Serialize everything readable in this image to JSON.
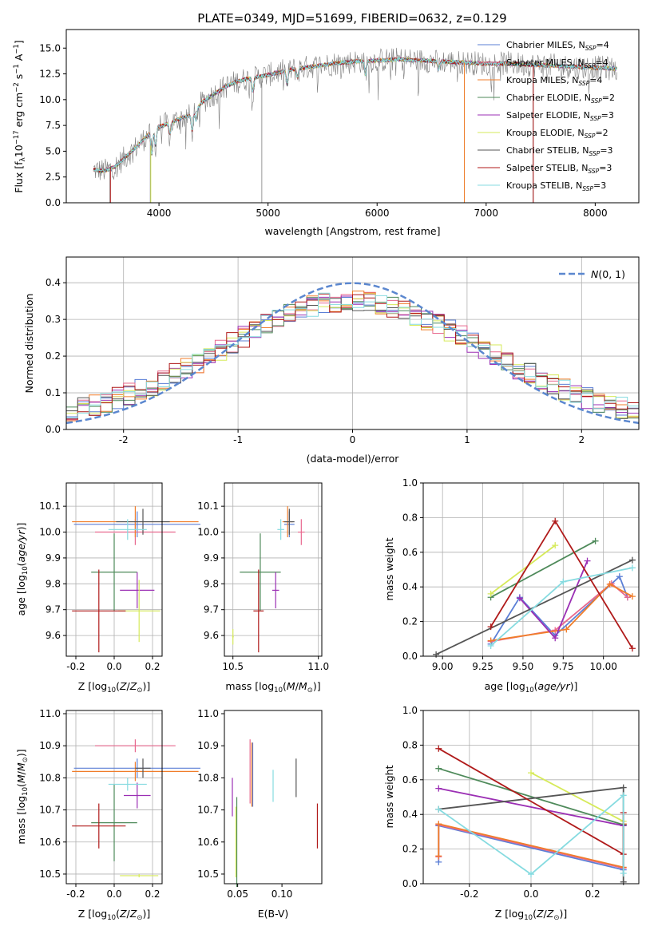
{
  "figure": {
    "title": "PLATE=0349, MJD=51699, FIBERID=0632, z=0.129"
  },
  "colors": {
    "chabrier_miles": "#5b7fd6",
    "salpeter_miles": "#e8688e",
    "kroupa_miles": "#f07d2a",
    "chabrier_elodie": "#4e8a5a",
    "salpeter_elodie": "#9b2fb4",
    "kroupa_elodie": "#d6ea5a",
    "chabrier_stelib": "#555555",
    "salpeter_stelib": "#b01a1a",
    "kroupa_stelib": "#86dbe0",
    "gauss": "#5b87cf"
  },
  "chart_data": [
    {
      "id": "spectrum",
      "type": "line",
      "title": "PLATE=0349, MJD=51699, FIBERID=0632, z=0.129",
      "xlabel": "wavelength [Angstrom, rest frame]",
      "ylabel": "Flux [f_λ 10^-17 erg cm^-2 s^-1 A^-1]",
      "xlim": [
        3150,
        8400
      ],
      "ylim": [
        0,
        16.8
      ],
      "xticks": [
        4000,
        5000,
        6000,
        7000,
        8000
      ],
      "yticks": [
        0.0,
        2.5,
        5.0,
        7.5,
        10.0,
        12.5,
        15.0
      ],
      "legend_position": "right",
      "legend": [
        "Chabrier MILES, N_SSP=4",
        "Salpeter MILES, N_SSP=4",
        "Kroupa MILES, N_SSP=4",
        "Chabrier ELODIE, N_SSP=2",
        "Salpeter ELODIE, N_SSP=3",
        "Kroupa ELODIE, N_SSP=2",
        "Chabrier STELIB, N_SSP=3",
        "Salpeter STELIB, N_SSP=3",
        "Kroupa STELIB, N_SSP=3"
      ],
      "continuum": {
        "x": [
          3400,
          3500,
          3600,
          3700,
          3800,
          3900,
          4000,
          4100,
          4200,
          4300,
          4400,
          4500,
          4600,
          4700,
          4800,
          4900,
          5000,
          5200,
          5400,
          5600,
          5800,
          6000,
          6200,
          6400,
          6600,
          6800,
          7000,
          7200,
          7400,
          7600,
          7800,
          8000,
          8200
        ],
        "y": [
          3.2,
          3.1,
          3.5,
          4.5,
          5.5,
          6.6,
          7.4,
          7.7,
          8.2,
          8.5,
          9.8,
          10.5,
          11.2,
          11.7,
          12.0,
          12.2,
          12.4,
          12.9,
          13.2,
          13.5,
          13.7,
          13.8,
          13.9,
          13.8,
          13.7,
          13.6,
          13.5,
          13.5,
          13.4,
          13.3,
          13.2,
          13.1,
          13.0
        ]
      },
      "absorption_lines": [
        {
          "x": 3934,
          "depth": 2.2
        },
        {
          "x": 3969,
          "depth": 1.6
        },
        {
          "x": 4101,
          "depth": 1.0
        },
        {
          "x": 4305,
          "depth": 1.6
        },
        {
          "x": 4340,
          "depth": 1.0
        },
        {
          "x": 4861,
          "depth": 1.3
        },
        {
          "x": 5175,
          "depth": 1.4
        },
        {
          "x": 5270,
          "depth": 0.8
        },
        {
          "x": 5893,
          "depth": 1.3
        },
        {
          "x": 6563,
          "depth": 0.8
        }
      ],
      "spikes": [
        {
          "x": 3550,
          "ymin": 0.0
        },
        {
          "x": 3920,
          "ymin": 0.0
        },
        {
          "x": 4943,
          "ymin": 0.0
        },
        {
          "x": 6800,
          "ymin": 0.0
        },
        {
          "x": 7430,
          "ymin": 0.0
        }
      ]
    },
    {
      "id": "residuals",
      "type": "line",
      "xlabel": "(data-model)/error",
      "ylabel": "Normed distribution",
      "xlim": [
        -2.5,
        2.5
      ],
      "ylim": [
        0,
        0.47
      ],
      "xticks": [
        -2,
        -1,
        0,
        1,
        2
      ],
      "yticks": [
        0.0,
        0.1,
        0.2,
        0.3,
        0.4
      ],
      "grid": true,
      "legend_position": "top-right",
      "legend": [
        "N(0,1)"
      ],
      "bin_width": 0.1
    },
    {
      "id": "age_vs_Z",
      "type": "scatter",
      "xlabel": "Z [log10(Z/Z⊙)]",
      "ylabel": "age [log10(age/yr)]",
      "xlim": [
        -0.25,
        0.25
      ],
      "ylim": [
        9.52,
        10.19
      ],
      "xticks": [
        -0.2,
        0.0,
        0.2
      ],
      "yticks": [
        9.6,
        9.7,
        9.8,
        9.9,
        10.0,
        10.1
      ],
      "grid": true,
      "points": [
        {
          "series": "chabrier_miles",
          "x": 0.12,
          "y": 10.03,
          "xerr": 0.33,
          "yerr": 0.05
        },
        {
          "series": "salpeter_miles",
          "x": 0.11,
          "y": 10.0,
          "xerr": 0.21,
          "yerr": 0.05
        },
        {
          "series": "kroupa_miles",
          "x": 0.11,
          "y": 10.04,
          "xerr": 0.33,
          "yerr": 0.06
        },
        {
          "series": "chabrier_elodie",
          "x": 0.0,
          "y": 9.845,
          "xerr": 0.12,
          "yerr": 0.15
        },
        {
          "series": "salpeter_elodie",
          "x": 0.12,
          "y": 9.775,
          "xerr": 0.09,
          "yerr": 0.07
        },
        {
          "series": "kroupa_elodie",
          "x": 0.13,
          "y": 9.695,
          "xerr": 0.11,
          "yerr": 0.12
        },
        {
          "series": "chabrier_stelib",
          "x": 0.15,
          "y": 10.04,
          "xerr": 0.14,
          "yerr": 0.05
        },
        {
          "series": "salpeter_stelib",
          "x": -0.08,
          "y": 9.695,
          "xerr": 0.14,
          "yerr": 0.16
        },
        {
          "series": "kroupa_stelib",
          "x": 0.07,
          "y": 10.01,
          "xerr": 0.1,
          "yerr": 0.04
        }
      ]
    },
    {
      "id": "age_vs_mass",
      "type": "scatter",
      "xlabel": "mass [log10(M/M⊙)]",
      "ylabel": "",
      "xlim": [
        10.45,
        11.02
      ],
      "ylim": [
        9.52,
        10.19
      ],
      "xticks": [
        10.5,
        11.0
      ],
      "yticks": [
        9.6,
        9.7,
        9.8,
        9.9,
        10.0,
        10.1
      ],
      "grid": true,
      "points": [
        {
          "series": "chabrier_miles",
          "x": 10.83,
          "y": 10.03,
          "xerr": 0.03,
          "yerr": 0.05
        },
        {
          "series": "salpeter_miles",
          "x": 10.9,
          "y": 10.0,
          "xerr": 0.02,
          "yerr": 0.05
        },
        {
          "series": "kroupa_miles",
          "x": 10.82,
          "y": 10.04,
          "xerr": 0.03,
          "yerr": 0.06
        },
        {
          "series": "chabrier_elodie",
          "x": 10.66,
          "y": 9.845,
          "xerr": 0.12,
          "yerr": 0.15
        },
        {
          "series": "salpeter_elodie",
          "x": 10.75,
          "y": 9.775,
          "xerr": 0.02,
          "yerr": 0.07
        },
        {
          "series": "kroupa_elodie",
          "x": 10.5,
          "y": 9.595,
          "xerr": 0.005,
          "yerr": 0.03
        },
        {
          "series": "chabrier_stelib",
          "x": 10.83,
          "y": 10.04,
          "xerr": 0.03,
          "yerr": 0.05
        },
        {
          "series": "salpeter_stelib",
          "x": 10.65,
          "y": 9.695,
          "xerr": 0.03,
          "yerr": 0.16
        },
        {
          "series": "kroupa_stelib",
          "x": 10.78,
          "y": 10.01,
          "xerr": 0.02,
          "yerr": 0.04
        }
      ]
    },
    {
      "id": "weight_vs_age",
      "type": "line",
      "xlabel": "age [log10(age/yr)]",
      "ylabel": "mass weight",
      "xlim": [
        8.88,
        10.22
      ],
      "ylim": [
        0,
        1.0
      ],
      "xticks": [
        9.0,
        9.25,
        9.5,
        9.75,
        10.0
      ],
      "yticks": [
        0.0,
        0.2,
        0.4,
        0.6,
        0.8,
        1.0
      ],
      "grid": true,
      "series": [
        {
          "key": "chabrier_miles",
          "x": [
            9.3,
            9.48,
            9.7,
            10.1,
            10.15
          ],
          "y": [
            0.07,
            0.34,
            0.12,
            0.46,
            0.34
          ]
        },
        {
          "key": "salpeter_miles",
          "x": [
            9.3,
            9.7,
            10.05,
            10.15
          ],
          "y": [
            0.085,
            0.15,
            0.42,
            0.34
          ]
        },
        {
          "key": "kroupa_miles",
          "x": [
            9.3,
            9.77,
            10.04,
            10.18
          ],
          "y": [
            0.09,
            0.155,
            0.415,
            0.345
          ]
        },
        {
          "key": "chabrier_elodie",
          "x": [
            9.3,
            9.95
          ],
          "y": [
            0.34,
            0.665
          ]
        },
        {
          "key": "salpeter_elodie",
          "x": [
            9.48,
            9.7,
            9.9
          ],
          "y": [
            0.335,
            0.105,
            0.55
          ]
        },
        {
          "key": "kroupa_elodie",
          "x": [
            9.3,
            9.7
          ],
          "y": [
            0.36,
            0.64
          ]
        },
        {
          "key": "chabrier_stelib",
          "x": [
            8.96,
            10.18
          ],
          "y": [
            0.01,
            0.555
          ]
        },
        {
          "key": "salpeter_stelib",
          "x": [
            9.3,
            9.7,
            10.18
          ],
          "y": [
            0.17,
            0.78,
            0.045
          ]
        },
        {
          "key": "kroupa_stelib",
          "x": [
            9.3,
            9.75,
            10.18
          ],
          "y": [
            0.06,
            0.43,
            0.51
          ]
        }
      ]
    },
    {
      "id": "mass_vs_Z",
      "type": "scatter",
      "xlabel": "Z [log10(Z/Z⊙)]",
      "ylabel": "mass [log10(M/M⊙)]",
      "xlim": [
        -0.25,
        0.25
      ],
      "ylim": [
        10.47,
        11.01
      ],
      "xticks": [
        -0.2,
        0.0,
        0.2
      ],
      "yticks": [
        10.5,
        10.6,
        10.7,
        10.8,
        10.9,
        11.0
      ],
      "grid": true,
      "points": [
        {
          "series": "chabrier_miles",
          "x": 0.12,
          "y": 10.83,
          "xerr": 0.33,
          "yerr": 0.03
        },
        {
          "series": "salpeter_miles",
          "x": 0.11,
          "y": 10.9,
          "xerr": 0.21,
          "yerr": 0.02
        },
        {
          "series": "kroupa_miles",
          "x": 0.11,
          "y": 10.82,
          "xerr": 0.33,
          "yerr": 0.03
        },
        {
          "series": "chabrier_elodie",
          "x": 0.0,
          "y": 10.66,
          "xerr": 0.12,
          "yerr": 0.12
        },
        {
          "series": "salpeter_elodie",
          "x": 0.12,
          "y": 10.745,
          "xerr": 0.07,
          "yerr": 0.04
        },
        {
          "series": "kroupa_elodie",
          "x": 0.13,
          "y": 10.495,
          "xerr": 0.1,
          "yerr": 0.005
        },
        {
          "series": "chabrier_stelib",
          "x": 0.15,
          "y": 10.83,
          "xerr": 0.04,
          "yerr": 0.03
        },
        {
          "series": "salpeter_stelib",
          "x": -0.08,
          "y": 10.65,
          "xerr": 0.14,
          "yerr": 0.07
        },
        {
          "series": "kroupa_stelib",
          "x": 0.07,
          "y": 10.78,
          "xerr": 0.1,
          "yerr": 0.02
        }
      ]
    },
    {
      "id": "mass_vs_ebv",
      "type": "scatter",
      "xlabel": "E(B-V)",
      "ylabel": "",
      "xlim": [
        0.035,
        0.145
      ],
      "ylim": [
        10.47,
        11.01
      ],
      "xticks": [
        0.05,
        0.1
      ],
      "yticks": [
        10.5,
        10.6,
        10.7,
        10.8,
        10.9,
        11.0
      ],
      "points": [
        {
          "series": "chabrier_miles",
          "x": 0.067,
          "y": 10.81,
          "xerr": 0,
          "yerr": 0.1
        },
        {
          "series": "salpeter_miles",
          "x": 0.064,
          "y": 10.82,
          "xerr": 0,
          "yerr": 0.1
        },
        {
          "series": "kroupa_miles",
          "x": 0.066,
          "y": 10.81,
          "xerr": 0,
          "yerr": 0.1
        },
        {
          "series": "chabrier_elodie",
          "x": 0.049,
          "y": 10.6,
          "xerr": 0,
          "yerr": 0.14
        },
        {
          "series": "salpeter_elodie",
          "x": 0.044,
          "y": 10.74,
          "xerr": 0,
          "yerr": 0.06
        },
        {
          "series": "kroupa_elodie",
          "x": 0.048,
          "y": 10.6,
          "xerr": 0,
          "yerr": 0.11
        },
        {
          "series": "chabrier_stelib",
          "x": 0.116,
          "y": 10.8,
          "xerr": 0,
          "yerr": 0.06
        },
        {
          "series": "salpeter_stelib",
          "x": 0.14,
          "y": 10.65,
          "xerr": 0,
          "yerr": 0.07
        },
        {
          "series": "kroupa_stelib",
          "x": 0.09,
          "y": 10.775,
          "xerr": 0,
          "yerr": 0.05
        }
      ]
    },
    {
      "id": "weight_vs_Z",
      "type": "line",
      "xlabel": "Z [log10(Z/Z⊙)]",
      "ylabel": "mass weight",
      "xlim": [
        -0.35,
        0.35
      ],
      "ylim": [
        0,
        1.0
      ],
      "xticks": [
        -0.2,
        0.0,
        0.2
      ],
      "yticks": [
        0.0,
        0.2,
        0.4,
        0.6,
        0.8,
        1.0
      ],
      "grid": true,
      "series": [
        {
          "key": "chabrier_miles",
          "x": [
            -0.3,
            -0.3,
            0.3,
            0.3
          ],
          "y": [
            0.125,
            0.335,
            0.08,
            0.34
          ]
        },
        {
          "key": "salpeter_miles",
          "x": [
            -0.3,
            -0.3,
            0.3,
            0.3
          ],
          "y": [
            0.155,
            0.34,
            0.09,
            0.345
          ]
        },
        {
          "key": "kroupa_miles",
          "x": [
            -0.3,
            -0.3,
            0.3,
            0.3
          ],
          "y": [
            0.16,
            0.345,
            0.095,
            0.345
          ]
        },
        {
          "key": "chabrier_elodie",
          "x": [
            -0.3,
            0.3
          ],
          "y": [
            0.665,
            0.34
          ]
        },
        {
          "key": "salpeter_elodie",
          "x": [
            -0.3,
            0.3
          ],
          "y": [
            0.55,
            0.335
          ]
        },
        {
          "key": "kroupa_elodie",
          "x": [
            0.0,
            0.3
          ],
          "y": [
            0.64,
            0.36
          ]
        },
        {
          "key": "chabrier_stelib",
          "x": [
            -0.3,
            0.3,
            0.3
          ],
          "y": [
            0.43,
            0.555,
            0.01
          ]
        },
        {
          "key": "salpeter_stelib",
          "x": [
            -0.3,
            0.3,
            0.3
          ],
          "y": [
            0.78,
            0.17,
            0.41
          ]
        },
        {
          "key": "kroupa_stelib",
          "x": [
            -0.3,
            0.0,
            0.3,
            0.3
          ],
          "y": [
            0.43,
            0.055,
            0.51,
            0.06
          ]
        }
      ]
    }
  ]
}
